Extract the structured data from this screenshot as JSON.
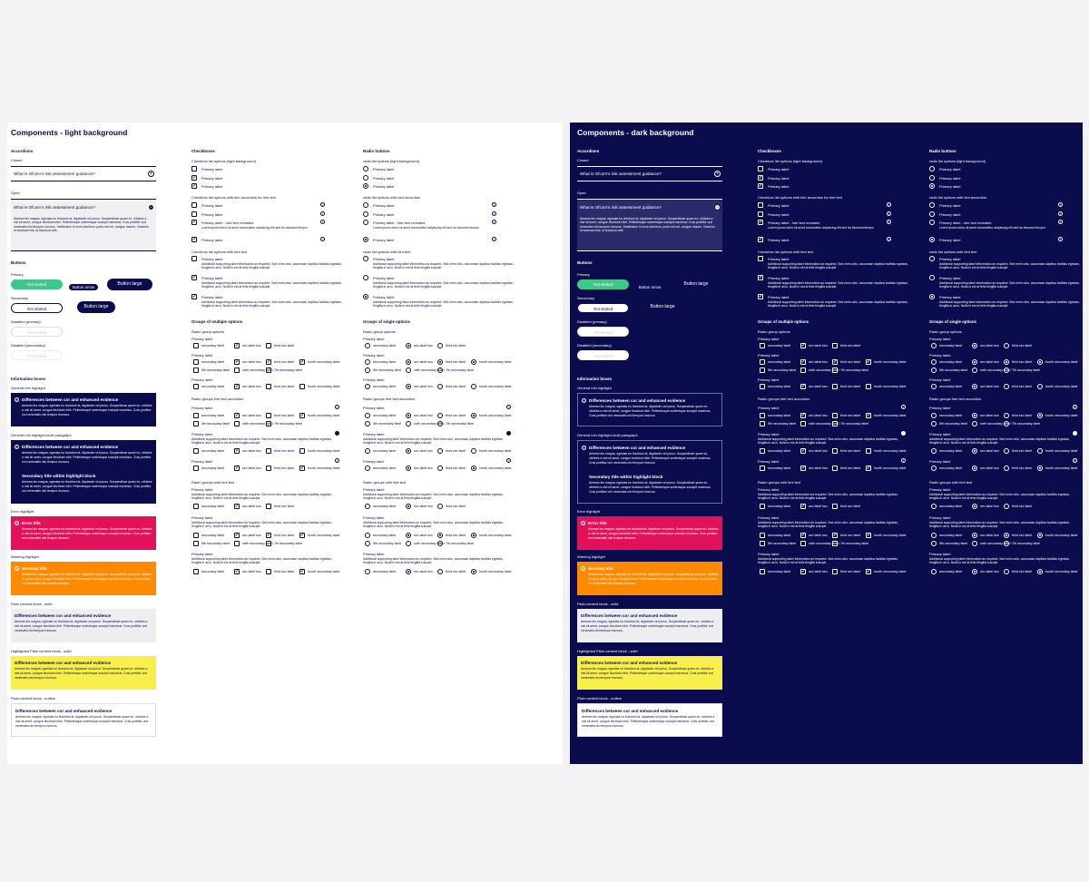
{
  "light": {
    "title": "Components - light background"
  },
  "dark": {
    "title": "Components - dark background"
  },
  "accordions": {
    "heading": "Accordions",
    "closed": "Closed",
    "open": "Open",
    "question": "What is Ofcom's risk assessment guidance?",
    "answer": "Aenean leo magna, egestas eu tincidunt at, dignissim vel purus. Suspendisse quam ex, ultricies a nisl sit amet, congue tincidunt nibh. Pellentesque scelerisque suscipit maximus. Cras porttitor orci venenatis nisi tempus rhoncus. Vestibulum et eros interdum, porta est vel, congue mauris. Vivamus id euismod nisi, id tincidunt velit."
  },
  "buttons": {
    "heading": "Buttons",
    "primary": "Primary",
    "secondary": "Secondary",
    "disabled_primary": "Disabled (primary)",
    "disabled_secondary": "Disabled (secondary)",
    "get_started": "Get started",
    "button_arrow": "Button arrow",
    "button_large": "Button large"
  },
  "info": {
    "heading": "Information boxes",
    "general": "General info highlight",
    "multi": "General info highlight multi paragraph",
    "error_label": "Error highlight",
    "warning_label": "Warning highlight",
    "plain_solid": "Plain content block - solid",
    "highlighted_solid": "Highlighted Plain content block - solid",
    "plain_outline": "Plain content block - outline",
    "box_title": "Differences between cor and enhanced evidence",
    "secondary_title": "Secondary title within highlight block",
    "error_title": "Error title",
    "warning_title": "Warning title",
    "body": "Aenean leo magna, egestas eu tincidunt at, dignissim vel purus. Suspendisse quam ex, ultricies a nisl sit amet, congue tincidunt nibh. Pellentesque scelerisque suscipit maximus. Cras porttitor orci venenatis nisi tempus rhoncus."
  },
  "checkboxes": {
    "heading": "Checkboxes",
    "light_opts": "Checkbox list options (light background)",
    "accordion_hint": "Checkbox list options with info accordion for hint text",
    "with_hint": "Checkbox list options with hint text",
    "primary_label": "Primary label",
    "hint_revealed": "Primary label - hint text revealed",
    "hint_small": "Lorem ipsum dolor sit amet consectetur adipiscing elit sed do eiusmod tempor",
    "additional": "Additional supporting label information as required. Sed enim odio, accumsan dapibus facilisis egestas, fringilla in arcu. Nulla in est at felis fringilla suscipit."
  },
  "radios": {
    "heading": "Radio buttons",
    "light_opts": "radio list options (light background)",
    "accordion_hint": "radio list options with hint accordion",
    "with_hint": "radio list options with hint text"
  },
  "groups": {
    "multi_heading": "Groups of multiple options",
    "single_heading": "Groups of single options",
    "radio_group_opts": "Radio group options",
    "radio_groups_accordion": "Radio groups hint text accordion",
    "radio_groups_hint": "Radio groups with hint text",
    "primary_label": "Primary label",
    "opt1": "secondary label",
    "opt2": "sec label two",
    "opt3": "third sec label",
    "opt4": "fourth secondary label",
    "opt5": "5th secondary label",
    "opt6": "sixth secondary label",
    "opt7": "7th secondary label",
    "additional": "Additional supporting label information as required. Sed enim odio, accumsan dapibus facilisis egestas, fringilla in arcu. Nulla in est at felis fringilla suscipit."
  },
  "colors": {
    "navy": "#0b0c4e",
    "green": "#3dc78a",
    "pink": "#e3105a",
    "orange": "#ff8a00",
    "yellow": "#f9ef4a",
    "grey": "#eeeef0"
  }
}
